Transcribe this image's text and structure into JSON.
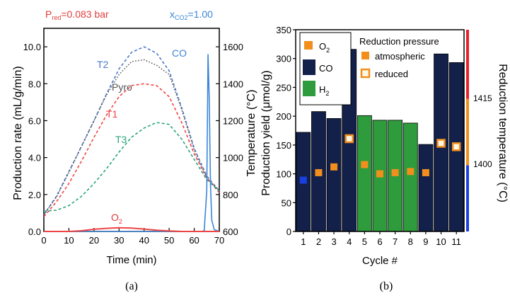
{
  "chart_data": [
    {
      "panel_label": "(a)",
      "type": "line",
      "title": "",
      "xlabel": "Time (min)",
      "ylabel": "Production rate (mL/g/min)",
      "ylabel_right": "Temperature (°C)",
      "xlim": [
        0,
        70
      ],
      "ylim": [
        0,
        11
      ],
      "ylim_right": [
        600,
        1700
      ],
      "xticks": [
        0,
        10,
        20,
        30,
        40,
        50,
        60,
        70
      ],
      "yticks": [
        "0.0",
        "2.0",
        "4.0",
        "6.0",
        "8.0",
        "10.0"
      ],
      "yticks_right": [
        600,
        800,
        1000,
        1200,
        1400,
        1600
      ],
      "annotations": {
        "pressure_prefix": "P",
        "pressure_sub": "red",
        "pressure_suffix": "=0.083 bar",
        "xco2_prefix": "x",
        "xco2_sub": "CO2",
        "xco2_suffix": "=1.00",
        "co_label": "CO",
        "o2_main": "O",
        "o2_sub": "2"
      },
      "series": [
        {
          "name": "T2",
          "color": "#4a78c8",
          "axis": "right",
          "style": "dashed",
          "x": [
            0,
            5,
            10,
            15,
            20,
            25,
            30,
            35,
            40,
            45,
            50,
            55,
            60,
            65,
            70
          ],
          "y": [
            690,
            790,
            925,
            1060,
            1200,
            1345,
            1480,
            1570,
            1600,
            1565,
            1470,
            1270,
            1050,
            900,
            820
          ]
        },
        {
          "name": "Pyro",
          "color": "#555555",
          "axis": "right",
          "style": "dotted",
          "x": [
            0,
            5,
            10,
            15,
            20,
            25,
            30,
            35,
            40,
            45,
            50,
            55,
            60,
            65,
            70
          ],
          "y": [
            690,
            785,
            920,
            1060,
            1200,
            1340,
            1450,
            1520,
            1530,
            1500,
            1450,
            1260,
            1040,
            890,
            820
          ]
        },
        {
          "name": "T1",
          "color": "#ee4444",
          "axis": "right",
          "style": "dashed",
          "x": [
            0,
            5,
            10,
            15,
            20,
            25,
            30,
            35,
            40,
            45,
            50,
            55,
            60,
            65,
            70
          ],
          "y": [
            680,
            760,
            860,
            980,
            1110,
            1230,
            1330,
            1390,
            1400,
            1390,
            1330,
            1190,
            1020,
            890,
            810
          ]
        },
        {
          "name": "T3",
          "color": "#2aa67a",
          "axis": "right",
          "style": "dashed",
          "x": [
            0,
            5,
            10,
            15,
            20,
            25,
            30,
            35,
            40,
            45,
            50,
            55,
            60,
            65,
            70
          ],
          "y": [
            710,
            715,
            740,
            790,
            860,
            940,
            1030,
            1110,
            1160,
            1190,
            1180,
            1100,
            990,
            880,
            820
          ]
        },
        {
          "name": "CO",
          "color": "#3a86d6",
          "axis": "left",
          "style": "solid",
          "x": [
            0,
            63,
            64,
            65,
            65.5,
            66,
            66.5,
            67,
            68,
            70
          ],
          "y": [
            0,
            0,
            0.05,
            2.2,
            9.6,
            7.2,
            2.5,
            0.6,
            0.1,
            0
          ]
        },
        {
          "name": "O2",
          "color": "#ee4444",
          "axis": "left",
          "style": "solid",
          "x": [
            0,
            10,
            15,
            20,
            25,
            30,
            35,
            40,
            45,
            50,
            55,
            70
          ],
          "y": [
            0,
            0,
            0.04,
            0.12,
            0.17,
            0.2,
            0.18,
            0.13,
            0.07,
            0.03,
            0,
            0
          ]
        }
      ]
    },
    {
      "panel_label": "(b)",
      "type": "bar",
      "title": "",
      "xlabel": "Cycle #",
      "ylabel": "Production yield (μmol/g)",
      "ylabel_right": "Reduction temperature (°C)",
      "ylim": [
        0,
        350
      ],
      "yticks": [
        0,
        50,
        100,
        150,
        200,
        250,
        300,
        350
      ],
      "categories": [
        "1",
        "2",
        "3",
        "4",
        "5",
        "6",
        "7",
        "8",
        "9",
        "10",
        "11"
      ],
      "product": [
        "CO",
        "CO",
        "CO",
        "CO",
        "H2",
        "H2",
        "H2",
        "H2",
        "CO",
        "CO",
        "CO"
      ],
      "values": [
        172,
        208,
        196,
        316,
        201,
        193,
        193,
        188,
        151,
        308,
        293
      ],
      "o2_values": [
        89,
        102,
        112,
        161,
        116,
        100,
        102,
        104,
        102,
        153,
        147
      ],
      "o2_pressure": [
        "atmospheric",
        "atmospheric",
        "atmospheric",
        "reduced",
        "atmospheric",
        "atmospheric",
        "atmospheric",
        "atmospheric",
        "atmospheric",
        "reduced",
        "reduced"
      ],
      "highlight_o2_cycle_color": "#1a3fe0",
      "colors": {
        "CO": "#13204a",
        "H2": "#2e9b3c",
        "O2_fill": "#f28f1c",
        "O2_reduced_fill": "#fff6e4"
      },
      "legend": {
        "items": [
          {
            "main": "O",
            "sub": "2",
            "color": "#f28f1c"
          },
          {
            "main": "CO",
            "sub": "",
            "color": "#13204a"
          },
          {
            "main": "H",
            "sub": "2",
            "color": "#2e9b3c"
          }
        ],
        "pressure_title": "Reduction pressure",
        "pressure_items": [
          {
            "label": "atmospheric",
            "style": "filled"
          },
          {
            "label": "reduced",
            "style": "hollow"
          }
        ]
      },
      "temperature_bar": {
        "segments": [
          {
            "from": 0,
            "to": 115,
            "color": "#1a3fe0"
          },
          {
            "from": 115,
            "to": 230,
            "color": "#f28f1c"
          },
          {
            "from": 230,
            "to": 350,
            "color": "#e8202a"
          }
        ],
        "labels": [
          {
            "text": "1400",
            "at": 118
          },
          {
            "text": "1415",
            "at": 232
          }
        ]
      }
    }
  ]
}
